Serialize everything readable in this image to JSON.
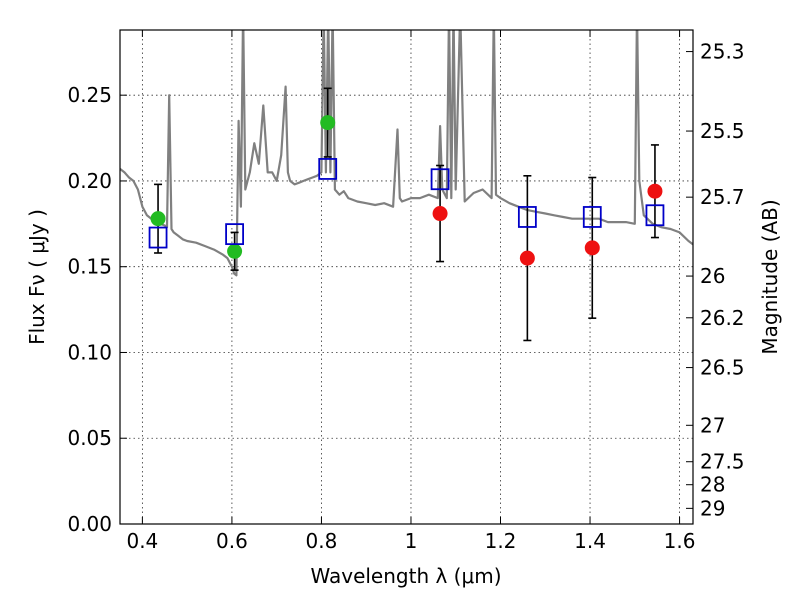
{
  "chart_data": {
    "type": "scatter",
    "xlabel": "Wavelength  λ (μm)",
    "ylabel": "Flux  Fν  ( μJy )",
    "ylabel_right": "Magnitude (AB)",
    "xlim": [
      0.35,
      1.63
    ],
    "ylim": [
      0.0,
      0.288
    ],
    "grid": true,
    "x_ticks": [
      {
        "value": 0.4,
        "label": "0.4"
      },
      {
        "value": 0.6,
        "label": "0.6"
      },
      {
        "value": 0.8,
        "label": "0.8"
      },
      {
        "value": 1.0,
        "label": "1"
      },
      {
        "value": 1.2,
        "label": "1.2"
      },
      {
        "value": 1.4,
        "label": "1.4"
      },
      {
        "value": 1.6,
        "label": "1.6"
      }
    ],
    "y_ticks": [
      {
        "value": 0.0,
        "label": "0.00"
      },
      {
        "value": 0.05,
        "label": "0.05"
      },
      {
        "value": 0.1,
        "label": "0.10"
      },
      {
        "value": 0.15,
        "label": "0.15"
      },
      {
        "value": 0.2,
        "label": "0.20"
      },
      {
        "value": 0.25,
        "label": "0.25"
      }
    ],
    "right_ticks": [
      {
        "mag": 25.3,
        "label": "25.3"
      },
      {
        "mag": 25.5,
        "label": "25.5"
      },
      {
        "mag": 25.7,
        "label": "25.7"
      },
      {
        "mag": 26.0,
        "label": "26"
      },
      {
        "mag": 26.2,
        "label": "26.2"
      },
      {
        "mag": 26.5,
        "label": "26.5"
      },
      {
        "mag": 27.0,
        "label": "27"
      },
      {
        "mag": 27.5,
        "label": "27.5"
      },
      {
        "mag": 28.0,
        "label": "28"
      },
      {
        "mag": 29.0,
        "label": "29"
      }
    ],
    "series": [
      {
        "marker": "circle-green",
        "color": "#22bb22",
        "points": [
          {
            "x": 0.435,
            "y": 0.178,
            "err": 0.02
          },
          {
            "x": 0.606,
            "y": 0.159,
            "err": 0.011
          },
          {
            "x": 0.814,
            "y": 0.234,
            "err": 0.02
          }
        ]
      },
      {
        "marker": "circle-red",
        "color": "#ee1111",
        "points": [
          {
            "x": 1.065,
            "y": 0.181,
            "err": 0.028
          },
          {
            "x": 1.26,
            "y": 0.155,
            "err": 0.048
          },
          {
            "x": 1.405,
            "y": 0.161,
            "err": 0.041
          },
          {
            "x": 1.545,
            "y": 0.194,
            "err": 0.027
          }
        ]
      },
      {
        "marker": "square-blue",
        "color": "#0000c8",
        "points": [
          {
            "x": 0.435,
            "y": 0.167
          },
          {
            "x": 0.606,
            "y": 0.169
          },
          {
            "x": 0.814,
            "y": 0.207
          },
          {
            "x": 1.065,
            "y": 0.201
          },
          {
            "x": 1.26,
            "y": 0.179
          },
          {
            "x": 1.405,
            "y": 0.179
          },
          {
            "x": 1.545,
            "y": 0.18
          }
        ]
      }
    ],
    "spectrum": {
      "color": "#808080",
      "x": [
        0.35,
        0.36,
        0.37,
        0.38,
        0.39,
        0.4,
        0.41,
        0.42,
        0.43,
        0.44,
        0.45,
        0.455,
        0.46,
        0.465,
        0.47,
        0.48,
        0.49,
        0.5,
        0.52,
        0.54,
        0.56,
        0.58,
        0.59,
        0.6,
        0.605,
        0.61,
        0.615,
        0.62,
        0.625,
        0.63,
        0.64,
        0.65,
        0.66,
        0.67,
        0.68,
        0.69,
        0.7,
        0.71,
        0.72,
        0.725,
        0.73,
        0.74,
        0.75,
        0.76,
        0.77,
        0.78,
        0.79,
        0.8,
        0.805,
        0.81,
        0.815,
        0.82,
        0.825,
        0.83,
        0.84,
        0.85,
        0.86,
        0.88,
        0.9,
        0.92,
        0.94,
        0.96,
        0.97,
        0.975,
        0.98,
        1.0,
        1.02,
        1.04,
        1.06,
        1.065,
        1.07,
        1.08,
        1.085,
        1.09,
        1.095,
        1.1,
        1.11,
        1.12,
        1.14,
        1.16,
        1.18,
        1.185,
        1.19,
        1.2,
        1.22,
        1.24,
        1.26,
        1.28,
        1.3,
        1.32,
        1.34,
        1.36,
        1.38,
        1.4,
        1.42,
        1.44,
        1.46,
        1.48,
        1.5,
        1.505,
        1.51,
        1.52,
        1.54,
        1.56,
        1.58,
        1.6,
        1.62,
        1.63
      ],
      "y": [
        0.207,
        0.205,
        0.202,
        0.2,
        0.195,
        0.185,
        0.18,
        0.178,
        0.176,
        0.175,
        0.174,
        0.173,
        0.25,
        0.172,
        0.17,
        0.168,
        0.166,
        0.165,
        0.164,
        0.162,
        0.16,
        0.157,
        0.155,
        0.15,
        0.146,
        0.145,
        0.235,
        0.185,
        0.3,
        0.195,
        0.205,
        0.222,
        0.21,
        0.244,
        0.205,
        0.205,
        0.2,
        0.215,
        0.255,
        0.205,
        0.2,
        0.198,
        0.199,
        0.2,
        0.201,
        0.202,
        0.203,
        0.205,
        0.3,
        0.205,
        0.3,
        0.205,
        0.3,
        0.195,
        0.192,
        0.194,
        0.19,
        0.188,
        0.187,
        0.186,
        0.187,
        0.185,
        0.23,
        0.19,
        0.188,
        0.19,
        0.19,
        0.192,
        0.19,
        0.232,
        0.195,
        0.19,
        0.3,
        0.19,
        0.3,
        0.195,
        0.3,
        0.188,
        0.193,
        0.195,
        0.19,
        0.3,
        0.192,
        0.19,
        0.187,
        0.185,
        0.183,
        0.182,
        0.181,
        0.18,
        0.179,
        0.178,
        0.178,
        0.178,
        0.178,
        0.176,
        0.176,
        0.176,
        0.175,
        0.3,
        0.2,
        0.18,
        0.175,
        0.173,
        0.172,
        0.17,
        0.165,
        0.163
      ]
    }
  }
}
